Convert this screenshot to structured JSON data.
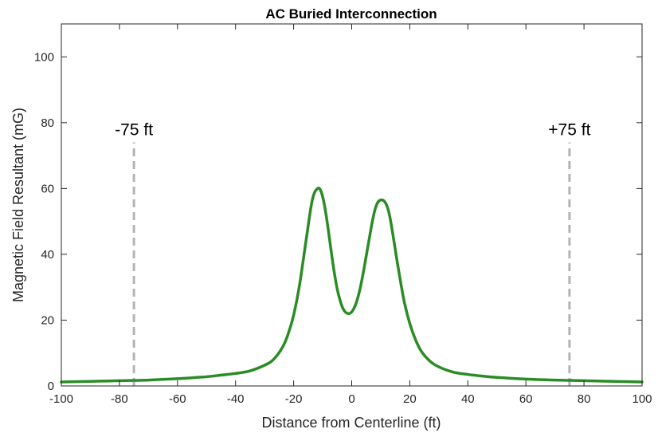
{
  "chart_data": {
    "type": "line",
    "title": "AC Buried Interconnection",
    "xlabel": "Distance from Centerline (ft)",
    "ylabel": "Magnetic Field Resultant (mG)",
    "xlim": [
      -100,
      100
    ],
    "ylim": [
      0,
      110
    ],
    "xticks": [
      -100,
      -80,
      -60,
      -40,
      -20,
      0,
      20,
      40,
      60,
      80,
      100
    ],
    "yticks": [
      0,
      20,
      40,
      60,
      80,
      100
    ],
    "grid": false,
    "colors": {
      "series": "#2a8c24",
      "reference": "#b3b3b3",
      "axes": "#262626"
    },
    "series": [
      {
        "x": [
          -100,
          -90,
          -80,
          -70,
          -60,
          -50,
          -45,
          -40,
          -35,
          -30,
          -27,
          -24,
          -22,
          -20,
          -18,
          -16,
          -14,
          -13,
          -12,
          -11,
          -10,
          -9,
          -8,
          -7,
          -6,
          -5,
          -4,
          -3,
          -2,
          -1,
          0,
          1,
          2,
          3,
          4,
          5,
          6,
          7,
          8,
          9,
          10,
          11,
          12,
          13,
          14,
          15,
          16,
          18,
          20,
          22,
          24,
          27,
          30,
          35,
          40,
          45,
          50,
          60,
          70,
          80,
          90,
          100
        ],
        "y": [
          1.2,
          1.4,
          1.6,
          1.8,
          2.2,
          2.8,
          3.3,
          3.8,
          4.6,
          6.3,
          8.0,
          11.5,
          15.5,
          21.5,
          30.5,
          42.5,
          54.5,
          58.3,
          59.8,
          59.9,
          57.5,
          53.0,
          47.0,
          40.5,
          34.5,
          29.5,
          26.0,
          23.5,
          22.3,
          22.0,
          22.5,
          24.0,
          26.5,
          30.0,
          34.5,
          39.5,
          44.5,
          49.5,
          53.5,
          55.8,
          56.5,
          56.3,
          55.0,
          52.0,
          47.0,
          41.5,
          36.0,
          26.0,
          19.0,
          14.0,
          10.5,
          7.5,
          5.8,
          4.2,
          3.5,
          3.0,
          2.6,
          2.1,
          1.8,
          1.6,
          1.4,
          1.2
        ]
      }
    ],
    "reference_lines": [
      {
        "x": -75,
        "label": "-75 ft"
      },
      {
        "x": 75,
        "label": "+75 ft"
      }
    ]
  }
}
